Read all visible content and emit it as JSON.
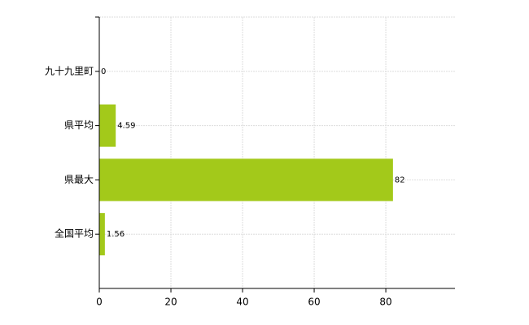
{
  "chart_data": {
    "type": "bar",
    "orientation": "horizontal",
    "categories": [
      "九十九里町",
      "県平均",
      "県最大",
      "全国平均"
    ],
    "values": [
      0,
      4.59,
      82,
      1.56
    ],
    "color": "#a3c91a",
    "xlim": [
      0,
      99.3
    ],
    "xticks": [
      0,
      20,
      40,
      60,
      80
    ],
    "grid": true
  }
}
